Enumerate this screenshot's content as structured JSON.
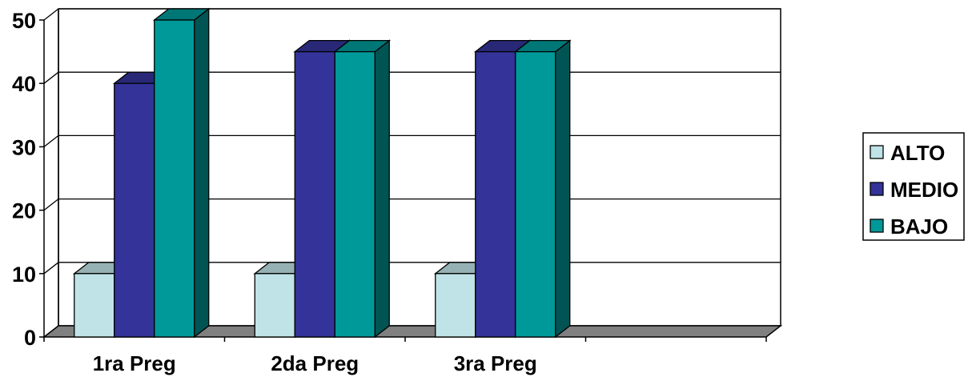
{
  "chart_data": {
    "type": "bar",
    "style": "3d-clustered-column",
    "categories": [
      "1ra Preg",
      "2da Preg",
      "3ra Preg",
      ""
    ],
    "series": [
      {
        "name": "ALTO",
        "values": [
          10,
          10,
          10,
          null
        ],
        "color": "#BFE3E6"
      },
      {
        "name": "MEDIO",
        "values": [
          40,
          45,
          45,
          null
        ],
        "color": "#333399"
      },
      {
        "name": "BAJO",
        "values": [
          50,
          45,
          45,
          null
        ],
        "color": "#009999"
      }
    ],
    "ylim": [
      0,
      50
    ],
    "yticks": [
      0,
      10,
      20,
      30,
      40,
      50
    ],
    "grid": true,
    "legend_position": "right",
    "colors": {
      "wall": "#ffffff",
      "floor": "#808080",
      "gridline": "#000000"
    }
  }
}
